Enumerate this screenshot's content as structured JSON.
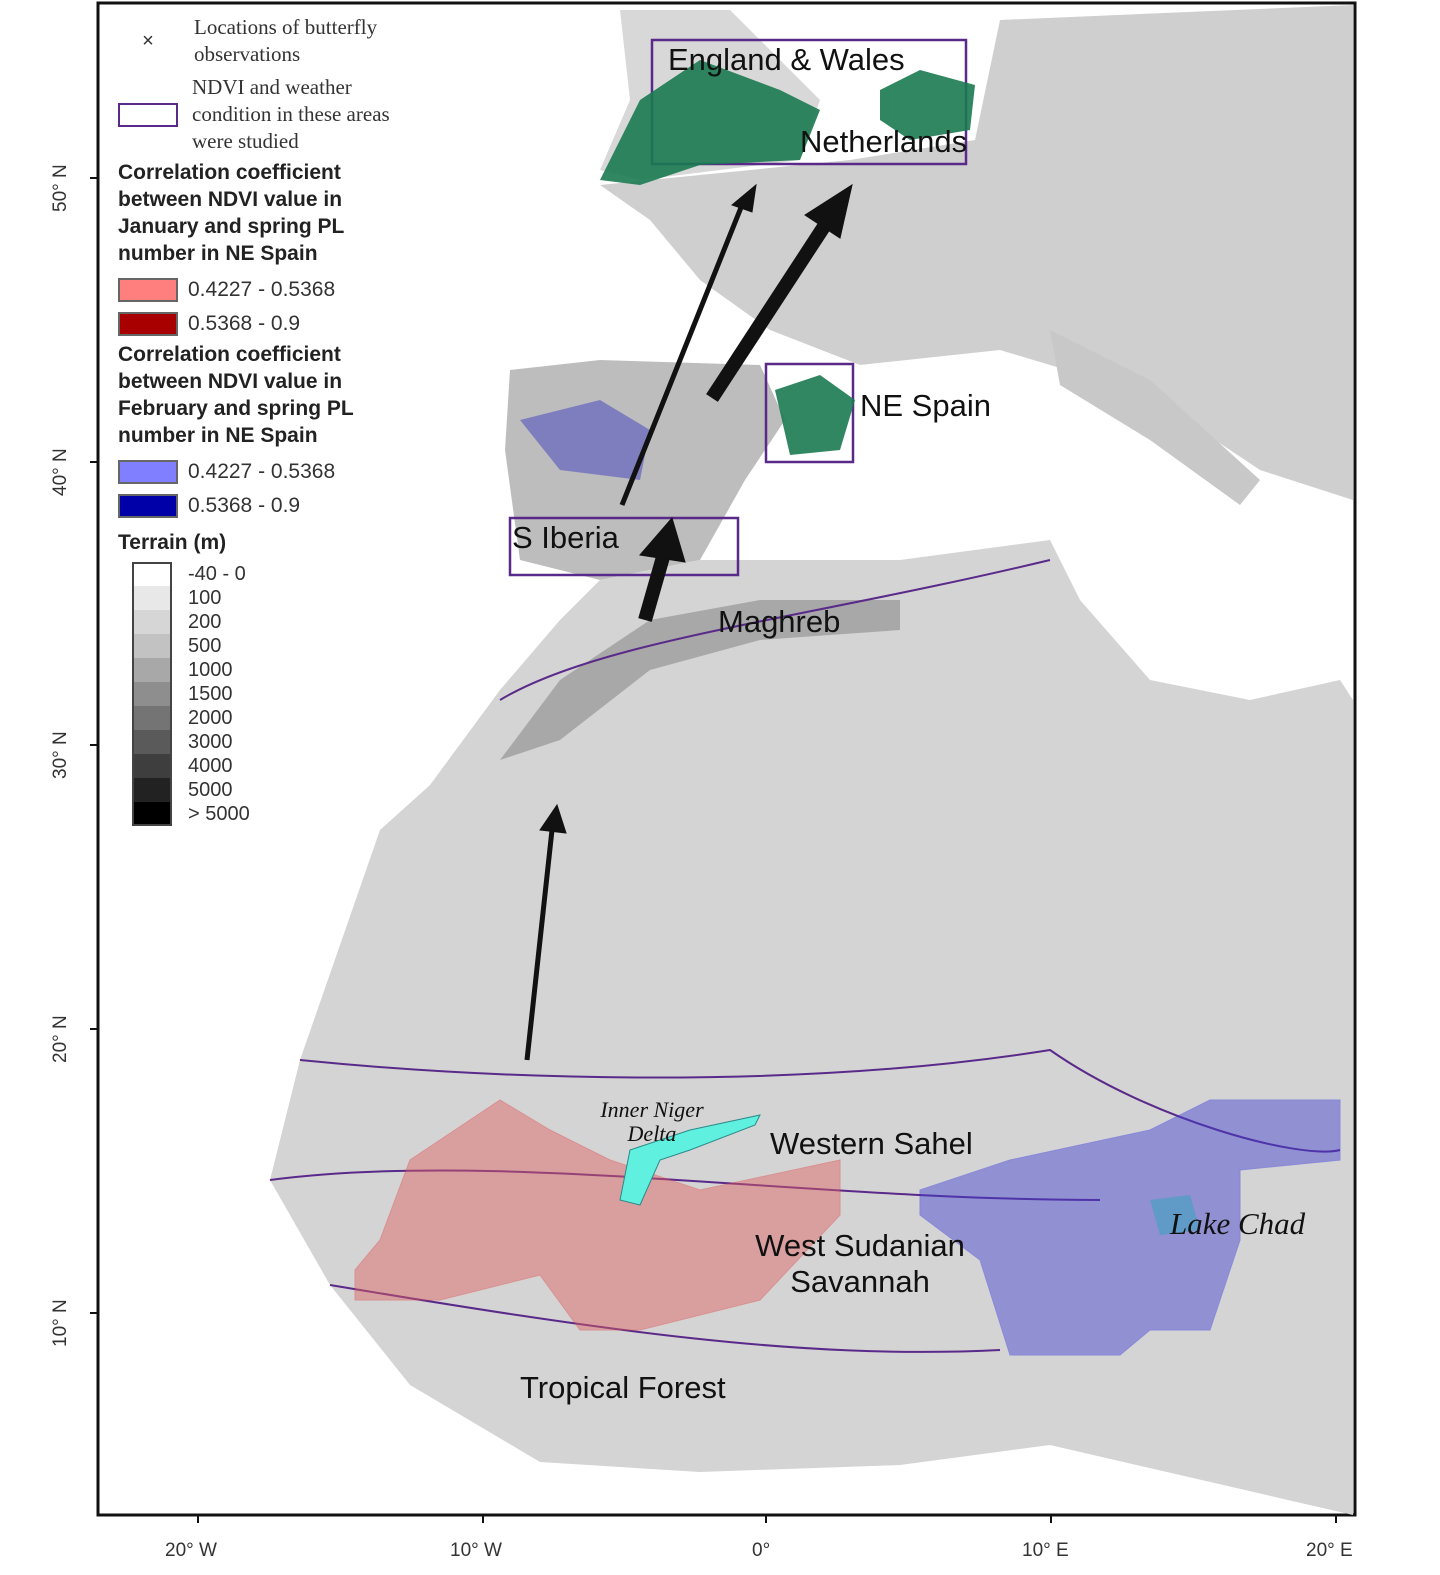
{
  "legend": {
    "observations": "Locations of butterfly observations",
    "observations_symbol": "×",
    "study_areas": "NDVI and weather condition in these areas were studied",
    "january_title": "Correlation coefficient between NDVI value in January and spring PL number in NE Spain",
    "january_classes": [
      {
        "range": "0.4227 - 0.5368",
        "color": "#ff7f7f"
      },
      {
        "range": "0.5368 - 0.9",
        "color": "#a80000"
      }
    ],
    "february_title": "Correlation coefficient between NDVI value in February and spring PL number in NE Spain",
    "february_classes": [
      {
        "range": "0.4227 - 0.5368",
        "color": "#7f7fff"
      },
      {
        "range": "0.5368 - 0.9",
        "color": "#0000a8"
      }
    ],
    "terrain_title": "Terrain (m)",
    "terrain_classes": [
      {
        "range": "-40 - 0",
        "color": "#ffffff"
      },
      {
        "range": "100",
        "color": "#e8e8e8"
      },
      {
        "range": "200",
        "color": "#d6d6d6"
      },
      {
        "range": "500",
        "color": "#c2c2c2"
      },
      {
        "range": "1000",
        "color": "#a8a8a8"
      },
      {
        "range": "1500",
        "color": "#8e8e8e"
      },
      {
        "range": "2000",
        "color": "#747474"
      },
      {
        "range": "3000",
        "color": "#5a5a5a"
      },
      {
        "range": "4000",
        "color": "#3e3e3e"
      },
      {
        "range": "5000",
        "color": "#222222"
      },
      {
        "range": "> 5000",
        "color": "#000000"
      }
    ]
  },
  "labels": {
    "england_wales": "England & Wales",
    "netherlands": "Netherlands",
    "ne_spain": "NE Spain",
    "s_iberia": "S Iberia",
    "maghreb": "Maghreb",
    "inner_niger_delta": "Inner Niger Delta",
    "western_sahel": "Western Sahel",
    "lake_chad": "Lake Chad",
    "west_sudanian": "West Sudanian Savannah",
    "tropical_forest": "Tropical Forest"
  },
  "axes": {
    "latitude_ticks": [
      "50° N",
      "40° N",
      "30° N",
      "20° N",
      "10° N"
    ],
    "longitude_ticks": [
      "20° W",
      "10° W",
      "0°",
      "10° E",
      "20° E"
    ]
  },
  "colors": {
    "observations": "#1a7a50",
    "study_area_outline": "#5a2a8a",
    "inner_niger_delta": "#5ff0e0",
    "arrows": "#111111"
  }
}
